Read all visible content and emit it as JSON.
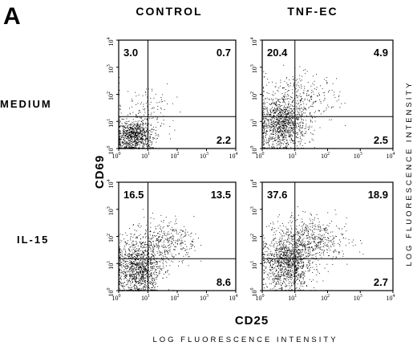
{
  "panel_label": "A",
  "y_axis_label": "CD69",
  "x_axis_label": "CD25",
  "x_fluorescence_label": "LOG FLUORESCENCE INTENSITY",
  "y_fluorescence_label": "LOG FLUORESCENCE INTENSITY",
  "columns": [
    "CONTROL",
    "TNF-EC"
  ],
  "rows": [
    "MEDIUM",
    "IL-15"
  ],
  "axis": {
    "scale": "log",
    "range": [
      1,
      10000
    ],
    "ticks": [
      {
        "base": "10",
        "exp": "0"
      },
      {
        "base": "10",
        "exp": "1"
      },
      {
        "base": "10",
        "exp": "2"
      },
      {
        "base": "10",
        "exp": "3"
      },
      {
        "base": "10",
        "exp": "4"
      }
    ]
  },
  "chart_data": [
    {
      "type": "scatter",
      "column": "CONTROL",
      "row": "MEDIUM",
      "quadrant_gates": {
        "x": 10,
        "y": 15
      },
      "quadrants": {
        "upper_left": "3.0",
        "upper_right": "0.7",
        "lower_right": "2.2"
      },
      "xlim": [
        1,
        10000
      ],
      "ylim": [
        1,
        10000
      ],
      "log_scale": true
    },
    {
      "type": "scatter",
      "column": "TNF-EC",
      "row": "MEDIUM",
      "quadrant_gates": {
        "x": 10,
        "y": 15
      },
      "quadrants": {
        "upper_left": "20.4",
        "upper_right": "4.9",
        "lower_right": "2.5"
      },
      "xlim": [
        1,
        10000
      ],
      "ylim": [
        1,
        10000
      ],
      "log_scale": true
    },
    {
      "type": "scatter",
      "column": "CONTROL",
      "row": "IL-15",
      "quadrant_gates": {
        "x": 10,
        "y": 15
      },
      "quadrants": {
        "upper_left": "16.5",
        "upper_right": "13.5",
        "lower_right": "8.6"
      },
      "xlim": [
        1,
        10000
      ],
      "ylim": [
        1,
        10000
      ],
      "log_scale": true
    },
    {
      "type": "scatter",
      "column": "TNF-EC",
      "row": "IL-15",
      "quadrant_gates": {
        "x": 10,
        "y": 15
      },
      "quadrants": {
        "upper_left": "37.6",
        "upper_right": "18.9",
        "lower_right": "2.7"
      },
      "xlim": [
        1,
        10000
      ],
      "ylim": [
        1,
        10000
      ],
      "log_scale": true
    }
  ]
}
